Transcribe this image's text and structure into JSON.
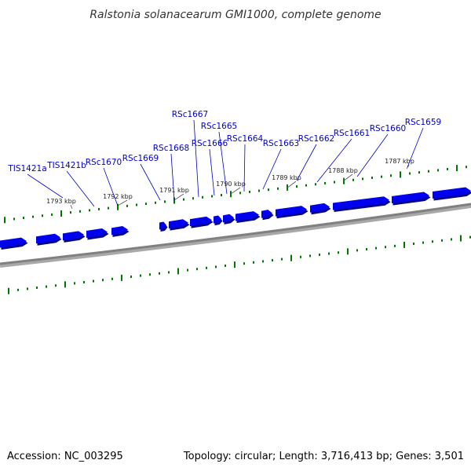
{
  "title": "Ralstonia solanacearum GMI1000, complete genome",
  "footer": {
    "accession": "Accession: NC_003295",
    "summary": "Topology: circular; Length: 3,716,413 bp; Genes: 3,501"
  },
  "colors": {
    "gene": "#0000ee",
    "gene_shadow": "#000088",
    "backbone": "#808080",
    "tick": "#007700",
    "label_line": "#0000cc"
  },
  "scale_labels": [
    "1793 kbp",
    "1792 kbp",
    "1791 kbp",
    "1790 kbp",
    "1789 kbp",
    "1788 kbp",
    "1787 kbp"
  ],
  "genes": [
    {
      "name": "TIS1421a"
    },
    {
      "name": "TIS1421b"
    },
    {
      "name": "RSc1670"
    },
    {
      "name": "RSc1669"
    },
    {
      "name": "RSc1668"
    },
    {
      "name": "RSc1667"
    },
    {
      "name": "RSc1666"
    },
    {
      "name": "RSc1665"
    },
    {
      "name": "RSc1664"
    },
    {
      "name": "RSc1663"
    },
    {
      "name": "RSc1662"
    },
    {
      "name": "RSc1661"
    },
    {
      "name": "RSc1660"
    },
    {
      "name": "RSc1659"
    }
  ]
}
